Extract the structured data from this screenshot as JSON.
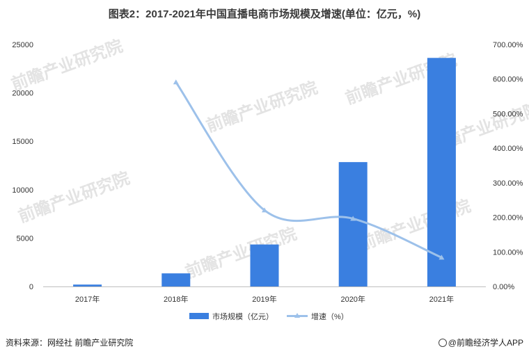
{
  "chart_data": {
    "type": "bar",
    "title": "图表2：2017-2021年中国直播电商市场规模及增速(单位：亿元，%)",
    "categories": [
      "2017年",
      "2018年",
      "2019年",
      "2020年",
      "2021年"
    ],
    "series": [
      {
        "name": "市场规模（亿元）",
        "type": "bar",
        "axis": "left",
        "values": [
          196,
          1354,
          4338,
          12850,
          23615
        ]
      },
      {
        "name": "增速（%）",
        "type": "line",
        "axis": "right",
        "values": [
          null,
          590.8,
          220.4,
          196.2,
          83.8
        ]
      }
    ],
    "ylim": [
      0,
      25000
    ],
    "yticks": [
      "25000",
      "20000",
      "15000",
      "10000",
      "5000",
      "0"
    ],
    "y2lim": [
      0,
      700
    ],
    "y2ticks": [
      "700.00%",
      "600.00%",
      "500.00%",
      "400.00%",
      "300.00%",
      "200.00%",
      "100.00%",
      "0.00%"
    ],
    "legend_position": "bottom",
    "colors": {
      "bar": "#3a7fe0",
      "line": "#9dc1ea",
      "axis": "#bfbfbf"
    }
  },
  "footer": {
    "source": "资料来源：网经社 前瞻产业研究院",
    "brand": "@前瞻经济学人APP"
  },
  "watermark": "前瞻产业研究院"
}
